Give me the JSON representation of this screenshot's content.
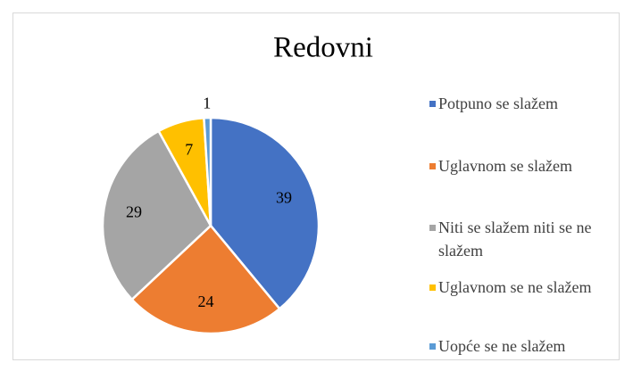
{
  "chart_data": {
    "type": "pie",
    "title": "Redovni",
    "categories": [
      "Potpuno se slažem",
      "Uglavnom se slažem",
      "Niti se slažem niti se ne slažem",
      "Uglavnom se ne slažem",
      "Uopće se ne slažem"
    ],
    "values": [
      39,
      24,
      29,
      7,
      1
    ],
    "colors": [
      "#4472c4",
      "#ed7d31",
      "#a5a5a5",
      "#ffc000",
      "#5b9bd5"
    ],
    "legend": "right"
  }
}
